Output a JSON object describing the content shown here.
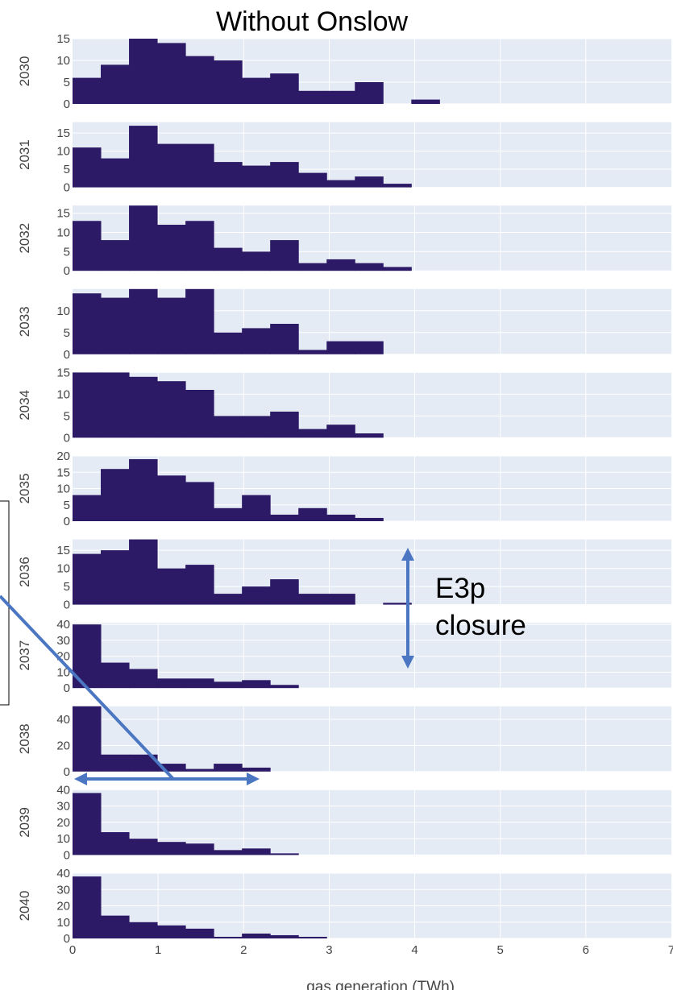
{
  "title": "Without Onslow",
  "annotation_lines": [
    "E3p",
    "closure"
  ],
  "colors": {
    "bar": "#2c1a66",
    "panel_bg": "#e5ebf5",
    "grid": "#ffffff",
    "arrow": "#4a76c2",
    "tick_text": "#444444"
  },
  "chart_data": {
    "type": "bar",
    "title": "Without Onslow",
    "xlabel": "gas generation (TWh)",
    "ylabel": "",
    "xlim": [
      0,
      7
    ],
    "x_ticks": [
      "0",
      "1",
      "2",
      "3",
      "4",
      "5",
      "6",
      "7"
    ],
    "bin_width": 0.33,
    "bin_starts": [
      0,
      0.33,
      0.66,
      0.99,
      1.32,
      1.65,
      1.98,
      2.31,
      2.64,
      2.97,
      3.3,
      3.63,
      3.96,
      4.29
    ],
    "grid": true,
    "panels": [
      {
        "year": "2030",
        "ylim": [
          0,
          15
        ],
        "yticks": [
          "0",
          "5",
          "10",
          "15"
        ],
        "values": [
          6,
          9,
          15,
          14,
          11,
          10,
          6,
          7,
          3,
          3,
          5,
          0,
          1,
          0
        ]
      },
      {
        "year": "2031",
        "ylim": [
          0,
          18
        ],
        "yticks": [
          "0",
          "5",
          "10",
          "15"
        ],
        "values": [
          11,
          8,
          17,
          12,
          12,
          7,
          6,
          7,
          4,
          2,
          3,
          1,
          0,
          0
        ]
      },
      {
        "year": "2032",
        "ylim": [
          0,
          17
        ],
        "yticks": [
          "0",
          "5",
          "10",
          "15"
        ],
        "values": [
          13,
          8,
          17,
          12,
          13,
          6,
          5,
          8,
          2,
          3,
          2,
          1,
          0,
          0
        ]
      },
      {
        "year": "2033",
        "ylim": [
          0,
          15
        ],
        "yticks": [
          "0",
          "5",
          "10"
        ],
        "values": [
          14,
          13,
          15,
          13,
          15,
          5,
          6,
          7,
          1,
          3,
          3,
          0,
          0,
          0
        ]
      },
      {
        "year": "2034",
        "ylim": [
          0,
          15
        ],
        "yticks": [
          "0",
          "5",
          "10",
          "15"
        ],
        "values": [
          15,
          15,
          14,
          13,
          11,
          5,
          5,
          6,
          2,
          3,
          1,
          0,
          0,
          0
        ]
      },
      {
        "year": "2035",
        "ylim": [
          0,
          20
        ],
        "yticks": [
          "0",
          "5",
          "10",
          "15",
          "20"
        ],
        "values": [
          8,
          16,
          19,
          14,
          12,
          4,
          8,
          2,
          4,
          2,
          1,
          0,
          0,
          0
        ]
      },
      {
        "year": "2036",
        "ylim": [
          0,
          18
        ],
        "yticks": [
          "0",
          "5",
          "10",
          "15"
        ],
        "values": [
          14,
          15,
          18,
          10,
          11,
          3,
          5,
          7,
          3,
          3,
          0,
          0.5,
          0,
          0
        ]
      },
      {
        "year": "2037",
        "ylim": [
          0,
          41
        ],
        "yticks": [
          "0",
          "10",
          "20",
          "30",
          "40"
        ],
        "values": [
          40,
          16,
          12,
          6,
          6,
          4,
          5,
          2,
          0,
          0,
          0,
          0,
          0,
          0
        ]
      },
      {
        "year": "2038",
        "ylim": [
          0,
          50
        ],
        "yticks": [
          "0",
          "20",
          "40"
        ],
        "values": [
          50,
          13,
          13,
          6,
          2,
          6,
          3,
          0,
          0,
          0,
          0,
          0,
          0,
          0
        ]
      },
      {
        "year": "2039",
        "ylim": [
          0,
          40
        ],
        "yticks": [
          "0",
          "10",
          "20",
          "30",
          "40"
        ],
        "values": [
          38,
          14,
          10,
          8,
          7,
          3,
          4,
          1,
          0,
          0,
          0,
          0,
          0,
          0
        ]
      },
      {
        "year": "2040",
        "ylim": [
          0,
          40
        ],
        "yticks": [
          "0",
          "10",
          "20",
          "30",
          "40"
        ],
        "values": [
          38,
          14,
          10,
          8,
          6,
          1,
          3,
          2,
          1,
          0,
          0,
          0,
          0,
          0
        ]
      }
    ]
  }
}
